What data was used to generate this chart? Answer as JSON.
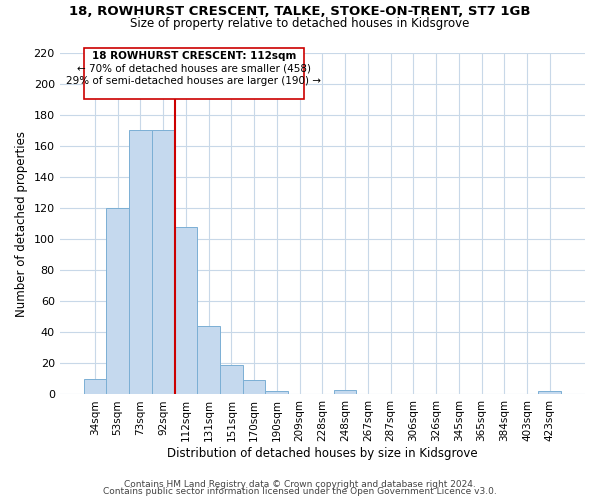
{
  "title": "18, ROWHURST CRESCENT, TALKE, STOKE-ON-TRENT, ST7 1GB",
  "subtitle": "Size of property relative to detached houses in Kidsgrove",
  "xlabel": "Distribution of detached houses by size in Kidsgrove",
  "ylabel": "Number of detached properties",
  "bar_labels": [
    "34sqm",
    "53sqm",
    "73sqm",
    "92sqm",
    "112sqm",
    "131sqm",
    "151sqm",
    "170sqm",
    "190sqm",
    "209sqm",
    "228sqm",
    "248sqm",
    "267sqm",
    "287sqm",
    "306sqm",
    "326sqm",
    "345sqm",
    "365sqm",
    "384sqm",
    "403sqm",
    "423sqm"
  ],
  "bar_values": [
    10,
    120,
    170,
    170,
    108,
    44,
    19,
    9,
    2,
    0,
    0,
    3,
    0,
    0,
    0,
    0,
    0,
    0,
    0,
    0,
    2
  ],
  "bar_color": "#c5d9ee",
  "bar_edge_color": "#7bafd4",
  "vline_x_index": 4,
  "vline_color": "#cc0000",
  "ylim": [
    0,
    220
  ],
  "yticks": [
    0,
    20,
    40,
    60,
    80,
    100,
    120,
    140,
    160,
    180,
    200,
    220
  ],
  "annotation_title": "18 ROWHURST CRESCENT: 112sqm",
  "annotation_line1": "← 70% of detached houses are smaller (458)",
  "annotation_line2": "29% of semi-detached houses are larger (190) →",
  "footer1": "Contains HM Land Registry data © Crown copyright and database right 2024.",
  "footer2": "Contains public sector information licensed under the Open Government Licence v3.0.",
  "bg_color": "#ffffff",
  "grid_color": "#c8d8e8"
}
